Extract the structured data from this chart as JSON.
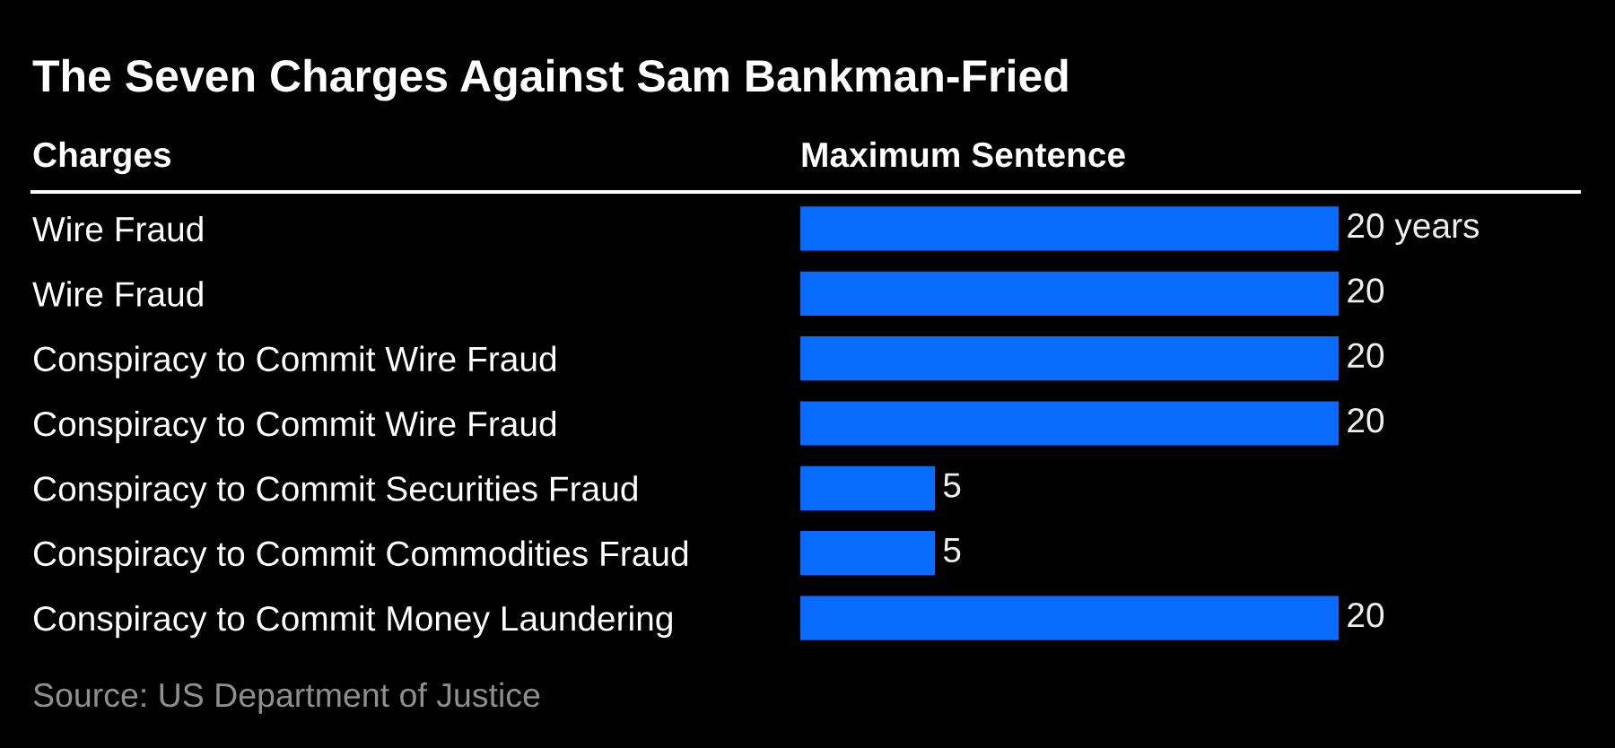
{
  "chart_data": {
    "type": "bar",
    "orientation": "horizontal",
    "title": "The Seven Charges Against Sam Bankman-Fried",
    "ylabel": "Charges",
    "xlabel": "Maximum Sentence",
    "categories": [
      "Wire Fraud",
      "Wire Fraud",
      "Conspiracy to Commit Wire Fraud",
      "Conspiracy to Commit Wire Fraud",
      "Conspiracy to Commit Securities Fraud",
      "Conspiracy to Commit Commodities Fraud",
      "Conspiracy to Commit Money Laundering"
    ],
    "values": [
      20,
      20,
      20,
      20,
      5,
      5,
      20
    ],
    "value_labels": [
      "20 years",
      "20",
      "20",
      "20",
      "5",
      "5",
      "20"
    ],
    "color": "#0a6cff",
    "tick_labels": "y",
    "annotations": [
      "Source: US Department of Justice"
    ]
  }
}
